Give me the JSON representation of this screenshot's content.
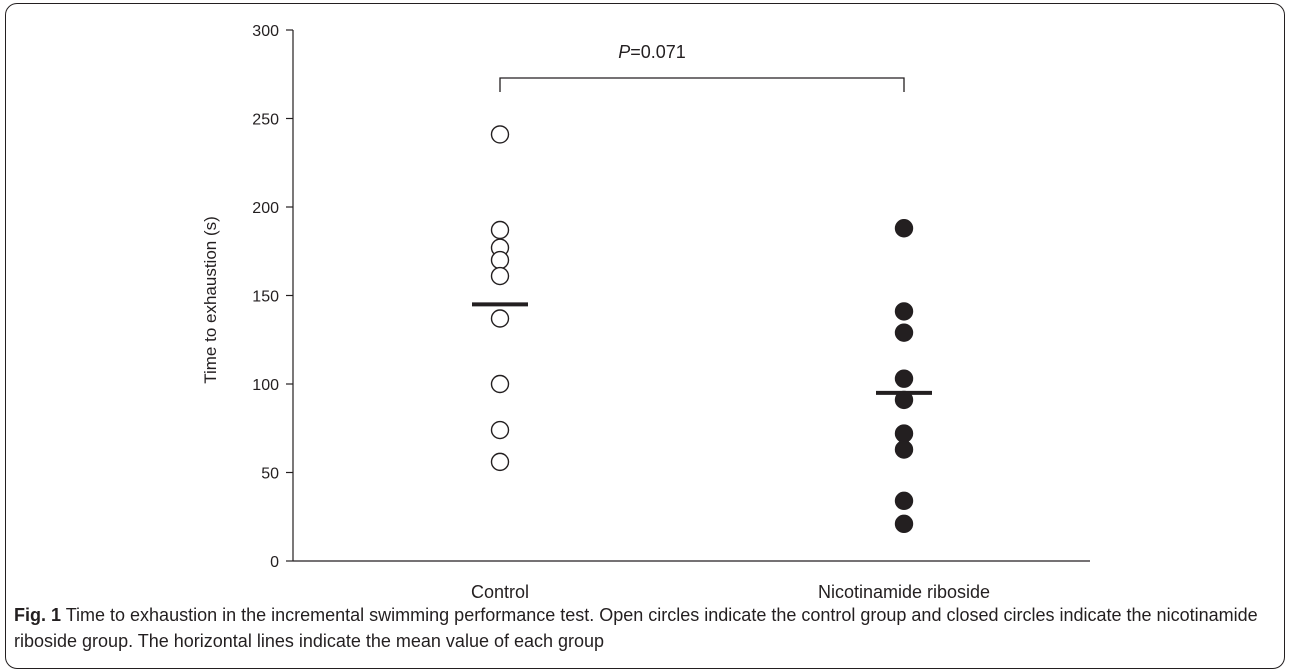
{
  "chart_data": {
    "type": "scatter",
    "ylabel": "Time to exhaustion (s)",
    "ylim": [
      0,
      300
    ],
    "yticks": [
      0,
      50,
      100,
      150,
      200,
      250,
      300
    ],
    "categories": [
      "Control",
      "Nicotinamide riboside"
    ],
    "series": [
      {
        "category": "Control",
        "marker": "open-circle",
        "values": [
          241,
          187,
          177,
          170,
          161,
          137,
          100,
          74,
          56
        ],
        "mean": 145
      },
      {
        "category": "Nicotinamide riboside",
        "marker": "filled-circle",
        "values": [
          188,
          141,
          129,
          103,
          91,
          72,
          63,
          34,
          21
        ],
        "mean": 95
      }
    ],
    "annotation": {
      "p_label": "P",
      "p_value": "=0.071"
    }
  },
  "caption": {
    "label": "Fig. 1",
    "text": " Time to exhaustion in the incremental swimming performance test. Open circles indicate the control group and closed circles indicate the nicotinamide riboside group. The horizontal lines indicate the mean value of each group"
  },
  "colors": {
    "ink": "#231f20",
    "background": "#ffffff"
  }
}
